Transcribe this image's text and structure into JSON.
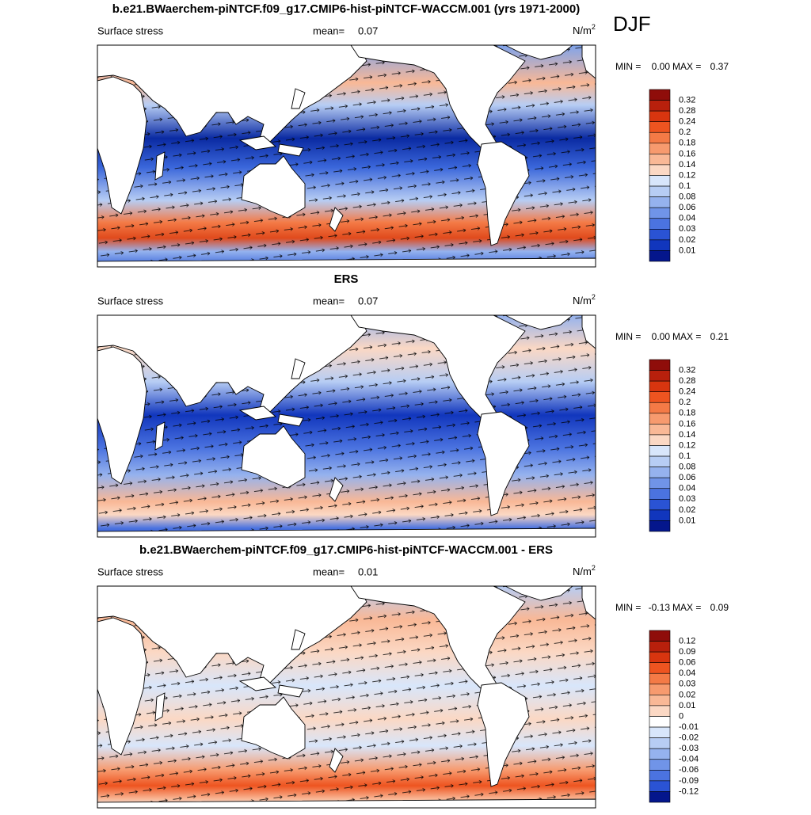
{
  "season": "DJF",
  "panels": [
    {
      "title": "b.e21.BWaerchem-piNTCF.f09_g17.CMIP6-hist-piNTCF-WACCM.001 (yrs 1971-2000)",
      "field_label": "Surface stress",
      "mean_label": "mean=",
      "mean": "0.07",
      "units": "N/m",
      "units_exp": "2",
      "min_label": "MIN =",
      "min": "0.00",
      "max_label": "MAX =",
      "max": "0.37",
      "levels": [
        "0.32",
        "0.28",
        "0.24",
        "0.2",
        "0.18",
        "0.16",
        "0.14",
        "0.12",
        "0.1",
        "0.08",
        "0.06",
        "0.04",
        "0.03",
        "0.02",
        "0.01"
      ],
      "colors": [
        "#8f0d0a",
        "#b8200c",
        "#d8350f",
        "#ee5420",
        "#f47a46",
        "#f79a6e",
        "#f9b896",
        "#fbd8c4",
        "#d8e6fb",
        "#b7cdf4",
        "#95b2ee",
        "#7094e8",
        "#4b73e0",
        "#2a53d4",
        "#1136bd",
        "#04168c"
      ]
    },
    {
      "title": "ERS",
      "field_label": "Surface stress",
      "mean_label": "mean=",
      "mean": "0.07",
      "units": "N/m",
      "units_exp": "2",
      "min_label": "MIN =",
      "min": "0.00",
      "max_label": "MAX =",
      "max": "0.21",
      "levels": [
        "0.32",
        "0.28",
        "0.24",
        "0.2",
        "0.18",
        "0.16",
        "0.14",
        "0.12",
        "0.1",
        "0.08",
        "0.06",
        "0.04",
        "0.03",
        "0.02",
        "0.01"
      ],
      "colors": [
        "#8f0d0a",
        "#b8200c",
        "#d8350f",
        "#ee5420",
        "#f47a46",
        "#f79a6e",
        "#f9b896",
        "#fbd8c4",
        "#d8e6fb",
        "#b7cdf4",
        "#95b2ee",
        "#7094e8",
        "#4b73e0",
        "#2a53d4",
        "#1136bd",
        "#04168c"
      ]
    },
    {
      "title": "b.e21.BWaerchem-piNTCF.f09_g17.CMIP6-hist-piNTCF-WACCM.001 - ERS",
      "field_label": "Surface stress",
      "mean_label": "mean=",
      "mean": "0.01",
      "units": "N/m",
      "units_exp": "2",
      "min_label": "MIN =",
      "min": "-0.13",
      "max_label": "MAX =",
      "max": "0.09",
      "levels": [
        "0.12",
        "0.09",
        "0.06",
        "0.04",
        "0.03",
        "0.02",
        "0.01",
        "0",
        "-0.01",
        "-0.02",
        "-0.03",
        "-0.04",
        "-0.06",
        "-0.09",
        "-0.12"
      ],
      "colors": [
        "#8f0d0a",
        "#b8200c",
        "#d8350f",
        "#ee5420",
        "#f47a46",
        "#f79a6e",
        "#f9b896",
        "#fbd8c4",
        "#ffffff",
        "#d8e6fb",
        "#b7cdf4",
        "#95b2ee",
        "#7094e8",
        "#4b73e0",
        "#2a53d4",
        "#04168c"
      ]
    }
  ]
}
